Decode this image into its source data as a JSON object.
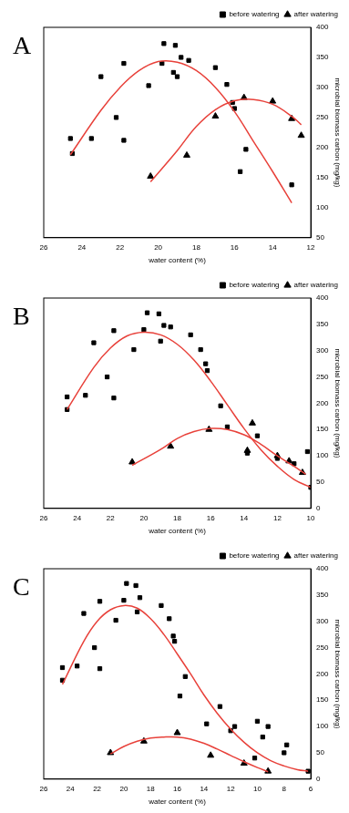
{
  "chart_data": [
    {
      "type": "scatter",
      "title": "A",
      "x_label": "water content (%)",
      "y_label": "microbial biomass carbon (mg/kg)",
      "xlim": [
        26,
        12
      ],
      "xticks": [
        26,
        24,
        22,
        20,
        18,
        16,
        14,
        12
      ],
      "ylim": [
        50,
        400
      ],
      "yticks": [
        50,
        100,
        150,
        200,
        250,
        300,
        350,
        400
      ],
      "grid": false,
      "legend": "upper right",
      "series": [
        {
          "name": "before watering",
          "type": "scatter",
          "marker": "square",
          "color": "#000000",
          "x": [
            24.6,
            24.5,
            23.5,
            23,
            22.2,
            21.8,
            21.8,
            20.5,
            19.8,
            19.7,
            19.2,
            19.1,
            19.0,
            18.8,
            18.4,
            17,
            16.4,
            16.1,
            16,
            15.7,
            15.4,
            13
          ],
          "values": [
            215,
            190,
            215,
            318,
            250,
            340,
            212,
            303,
            340,
            373,
            325,
            370,
            318,
            350,
            345,
            333,
            305,
            275,
            265,
            160,
            197,
            138
          ]
        },
        {
          "name": "after watering",
          "type": "scatter",
          "marker": "triangle",
          "color": "#000000",
          "x": [
            20.4,
            18.5,
            17,
            15.5,
            14,
            13,
            12.5
          ],
          "values": [
            152,
            187,
            252,
            283,
            277,
            248,
            220
          ]
        },
        {
          "type": "line",
          "marker": "none",
          "line_style": "solid",
          "color": "#e8413a",
          "x": [
            24.6,
            23,
            22,
            21,
            20,
            19,
            18,
            17,
            16,
            15,
            14,
            13
          ],
          "values": [
            188,
            262,
            300,
            328,
            343,
            342,
            328,
            300,
            260,
            210,
            160,
            108
          ]
        },
        {
          "type": "line",
          "marker": "none",
          "line_style": "solid",
          "color": "#e8413a",
          "x": [
            20.4,
            19,
            18,
            17,
            16,
            15,
            14,
            13,
            12.5
          ],
          "values": [
            143,
            195,
            235,
            263,
            278,
            280,
            272,
            252,
            238
          ]
        }
      ]
    },
    {
      "type": "scatter",
      "title": "B",
      "x_label": "water content (%)",
      "y_label": "microbial biomass carbon (mg/kg)",
      "xlim": [
        26,
        10
      ],
      "xticks": [
        26,
        24,
        22,
        20,
        18,
        16,
        14,
        12,
        10
      ],
      "ylim": [
        0,
        400
      ],
      "yticks": [
        0,
        50,
        100,
        150,
        200,
        250,
        300,
        350,
        400
      ],
      "grid": false,
      "legend": "upper right",
      "series": [
        {
          "name": "before watering",
          "type": "scatter",
          "marker": "square",
          "color": "#000000",
          "x": [
            24.6,
            24.6,
            23.5,
            23,
            22.2,
            21.8,
            21.8,
            20.6,
            20,
            19.8,
            19.1,
            19,
            18.8,
            18.4,
            17.2,
            16.6,
            16.3,
            16.2,
            15.4,
            15,
            13.2,
            13.8,
            12,
            11,
            10.2,
            10
          ],
          "values": [
            212,
            188,
            215,
            315,
            250,
            338,
            210,
            302,
            340,
            372,
            370,
            318,
            348,
            345,
            330,
            302,
            275,
            262,
            195,
            155,
            138,
            105,
            95,
            85,
            108,
            40
          ]
        },
        {
          "name": "after watering",
          "type": "scatter",
          "marker": "triangle",
          "color": "#000000",
          "x": [
            20.7,
            18.4,
            16.1,
            13.5,
            13.8,
            12,
            11.3,
            10.5
          ],
          "values": [
            88,
            118,
            150,
            162,
            110,
            100,
            90,
            68
          ]
        },
        {
          "type": "line",
          "marker": "none",
          "line_style": "solid",
          "color": "#e8413a",
          "x": [
            24.6,
            23,
            22,
            21,
            20,
            19,
            18,
            17,
            16,
            15,
            14,
            13,
            12,
            11,
            10
          ],
          "values": [
            188,
            268,
            305,
            328,
            335,
            330,
            312,
            282,
            242,
            197,
            152,
            112,
            80,
            55,
            40
          ]
        },
        {
          "type": "line",
          "marker": "none",
          "line_style": "solid",
          "color": "#e8413a",
          "x": [
            20.7,
            19,
            18,
            17,
            16,
            15,
            14,
            13,
            12,
            11,
            10.3
          ],
          "values": [
            82,
            112,
            133,
            146,
            152,
            150,
            140,
            122,
            100,
            80,
            65
          ]
        }
      ]
    },
    {
      "type": "scatter",
      "title": "C",
      "x_label": "water content (%)",
      "y_label": "microbial biomass carbon (mg/kg)",
      "xlim": [
        26,
        6
      ],
      "xticks": [
        26,
        24,
        22,
        20,
        18,
        16,
        14,
        12,
        10,
        8,
        6
      ],
      "ylim": [
        0,
        400
      ],
      "yticks": [
        0,
        50,
        100,
        150,
        200,
        250,
        300,
        350,
        400
      ],
      "grid": false,
      "legend": "upper right",
      "series": [
        {
          "name": "before watering",
          "type": "scatter",
          "marker": "square",
          "color": "#000000",
          "x": [
            24.6,
            24.6,
            23.5,
            23,
            22.2,
            21.8,
            21.8,
            20.6,
            20,
            19.8,
            19.1,
            19,
            18.8,
            17.2,
            16.6,
            16.3,
            16.2,
            15.4,
            15.8,
            13.8,
            12.8,
            12,
            11.7,
            10,
            9.6,
            9.2,
            10.2,
            8,
            7.8,
            6.2
          ],
          "values": [
            212,
            188,
            215,
            315,
            250,
            338,
            210,
            302,
            340,
            372,
            368,
            318,
            345,
            330,
            305,
            272,
            262,
            195,
            158,
            105,
            138,
            92,
            100,
            110,
            80,
            100,
            40,
            50,
            65,
            15
          ]
        },
        {
          "name": "after watering",
          "type": "scatter",
          "marker": "triangle",
          "color": "#000000",
          "x": [
            21,
            18.5,
            16,
            13.5,
            11,
            9.2
          ],
          "values": [
            50,
            72,
            88,
            45,
            30,
            15
          ]
        },
        {
          "type": "line",
          "marker": "none",
          "line_style": "solid",
          "color": "#e8413a",
          "x": [
            24.6,
            23,
            22,
            21,
            20,
            19,
            18,
            17,
            16,
            15,
            14,
            13,
            12,
            11,
            10,
            9,
            8,
            7,
            6.2
          ],
          "values": [
            180,
            262,
            300,
            322,
            330,
            325,
            305,
            275,
            238,
            200,
            160,
            125,
            95,
            70,
            50,
            35,
            25,
            18,
            15
          ]
        },
        {
          "type": "line",
          "marker": "none",
          "line_style": "solid",
          "color": "#e8413a",
          "x": [
            21,
            20,
            19,
            18,
            17,
            16,
            15,
            14,
            13,
            12,
            11,
            10,
            9.2
          ],
          "values": [
            48,
            62,
            72,
            78,
            80,
            80,
            76,
            68,
            57,
            45,
            33,
            22,
            14
          ]
        }
      ]
    }
  ]
}
